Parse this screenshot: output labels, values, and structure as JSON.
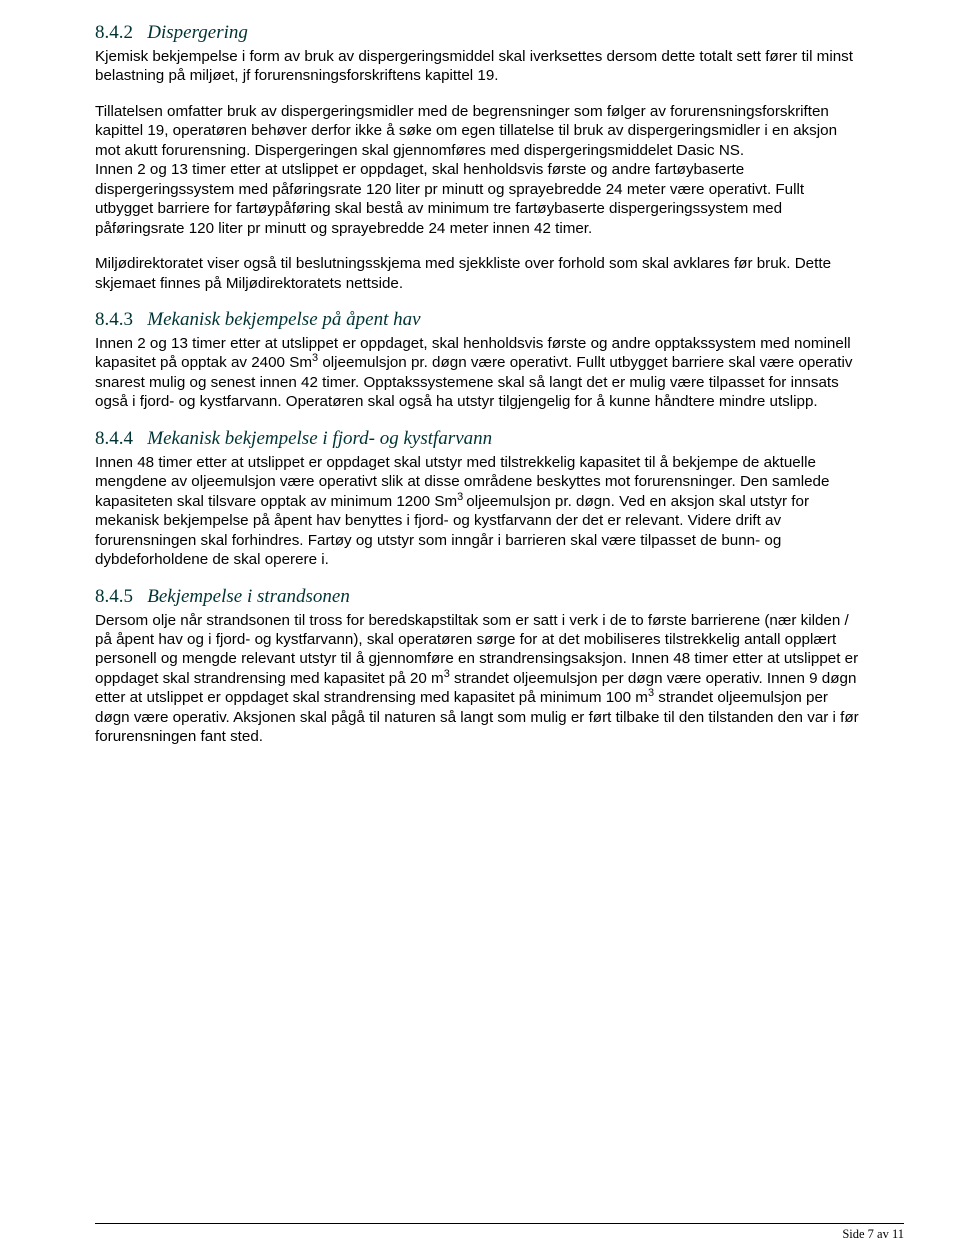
{
  "sections": {
    "s842": {
      "num": "8.4.2",
      "title": "Dispergering",
      "p1": "Kjemisk bekjempelse i form av bruk av dispergeringsmiddel skal iverksettes dersom dette totalt sett fører til minst belastning på miljøet, jf forurensningsforskriftens kapittel 19.",
      "p2": "Tillatelsen omfatter bruk av dispergeringsmidler med de begrensninger som følger av forurensningsforskriften kapittel 19, operatøren behøver derfor ikke å søke om egen tillatelse til bruk av dispergeringsmidler i en aksjon mot akutt forurensning. Dispergeringen skal gjennomføres med dispergeringsmiddelet Dasic NS.",
      "p2b": "Innen 2 og 13 timer etter at utslippet er oppdaget, skal henholdsvis første og andre fartøybaserte dispergeringssystem med påføringsrate 120 liter pr minutt og sprayebredde 24 meter være operativt. Fullt utbygget barriere for fartøypåføring skal bestå av minimum tre fartøybaserte dispergeringssystem med påføringsrate 120 liter pr minutt og sprayebredde 24 meter innen 42 timer.",
      "p3": "Miljødirektoratet viser også til beslutningsskjema med sjekkliste over forhold som skal avklares før bruk. Dette skjemaet finnes på Miljødirektoratets nettside."
    },
    "s843": {
      "num": "8.4.3",
      "title": "Mekanisk bekjempelse på åpent hav",
      "p1_a": "Innen 2 og 13 timer etter at utslippet er oppdaget, skal henholdsvis første og andre opptakssystem med nominell kapasitet på opptak av 2400 Sm",
      "p1_sup": "3",
      "p1_b": " oljeemulsjon pr. døgn være operativt. Fullt utbygget barriere skal være operativ snarest mulig og senest innen 42 timer. Opptakssystemene skal så langt det er mulig være tilpasset for innsats også i fjord- og kystfarvann. Operatøren skal også ha utstyr tilgjengelig for å kunne håndtere mindre utslipp."
    },
    "s844": {
      "num": "8.4.4",
      "title": "Mekanisk bekjempelse i fjord- og kystfarvann",
      "p1_a": "Innen 48 timer etter at utslippet er oppdaget skal utstyr med tilstrekkelig kapasitet til å bekjempe de aktuelle mengdene av oljeemulsjon være operativt slik at disse områdene beskyttes mot forurensninger. Den samlede kapasiteten skal tilsvare opptak av minimum 1200 Sm",
      "p1_sup": "3 ",
      "p1_b": "oljeemulsjon pr. døgn. Ved en aksjon skal utstyr for mekanisk bekjempelse på åpent hav benyttes i fjord- og kystfarvann der det er relevant. Videre drift av forurensningen skal forhindres. Fartøy og utstyr som inngår i barrieren skal være tilpasset de bunn- og dybdeforholdene de skal operere i."
    },
    "s845": {
      "num": "8.4.5",
      "title": "Bekjempelse i strandsonen",
      "p1_a": "Dersom olje når strandsonen til tross for beredskapstiltak som er satt i verk i de to første barrierene (nær kilden / på åpent hav og i fjord- og kystfarvann), skal operatøren sørge for at det mobiliseres tilstrekkelig antall opplært personell og mengde relevant utstyr til å gjennomføre en strandrensingsaksjon. Innen 48 timer etter at utslippet er oppdaget skal strandrensing med kapasitet på 20 m",
      "p1_sup1": "3",
      "p1_b": " strandet oljeemulsjon per døgn være operativ. Innen 9 døgn etter at utslippet er oppdaget skal strandrensing med kapasitet på minimum 100 m",
      "p1_sup2": "3",
      "p1_c": " strandet oljeemulsjon per døgn være operativ. Aksjonen skal pågå til naturen så langt som mulig er ført tilbake til den tilstanden den var i før forurensningen fant sted."
    }
  },
  "footer": "Side 7 av 11"
}
